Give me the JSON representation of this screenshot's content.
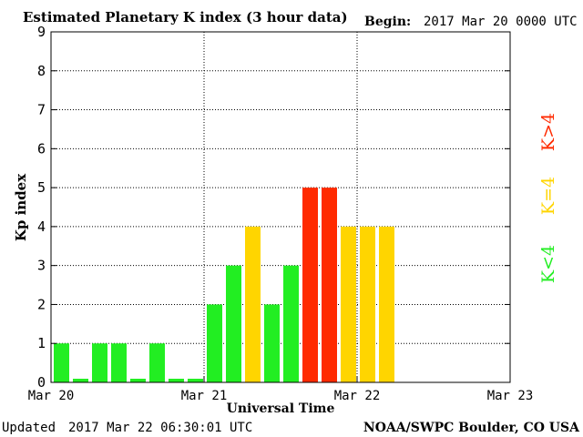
{
  "chart_data": {
    "type": "bar",
    "title": "Estimated Planetary K index (3 hour data)",
    "begin_label": "Begin:",
    "begin_value": "2017 Mar 20 0000 UTC",
    "ylabel": "Kp index",
    "xlabel": "Universal Time",
    "ylim": [
      0,
      9
    ],
    "yticks": [
      "0",
      "1",
      "2",
      "3",
      "4",
      "5",
      "6",
      "7",
      "8",
      "9"
    ],
    "xticks": [
      "Mar 20",
      "Mar 21",
      "Mar 22",
      "Mar 23"
    ],
    "bar_slots": 24,
    "values": [
      1,
      0,
      1,
      1,
      0,
      1,
      0,
      0,
      2,
      3,
      4,
      2,
      3,
      5,
      5,
      4,
      4,
      4
    ],
    "colors": {
      "quiet": "#22ee22",
      "active": "#ffd500",
      "storm": "#ff2a00"
    },
    "legend": {
      "storm": "K>4",
      "active": "K=4",
      "quiet": "K<4"
    },
    "grid": true
  },
  "footer": {
    "updated_label": "Updated",
    "updated_value": "2017 Mar 22 06:30:01 UTC",
    "credit": "NOAA/SWPC Boulder, CO USA"
  }
}
